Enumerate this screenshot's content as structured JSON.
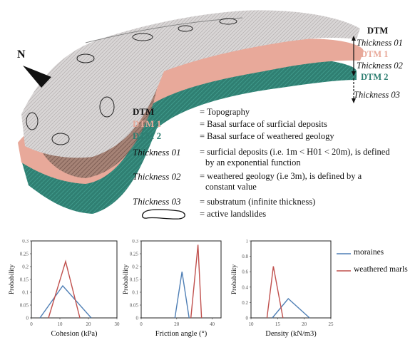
{
  "north_label": "N",
  "layers": {
    "dtm": "DTM",
    "thickness01": "Thickness 01",
    "dtm1": "DTM 1",
    "thickness02": "Thickness 02",
    "dtm2": "DTM 2",
    "thickness03": "Thickness 03"
  },
  "legend": [
    {
      "key": "DTM",
      "desc": "= Topography"
    },
    {
      "key": "DTM 1",
      "desc": "= Basal surface of surficial deposits"
    },
    {
      "key": "DTM 2",
      "desc": "= Basal surface of weathered geology"
    },
    {
      "key": "Thickness 01",
      "desc": "= surficial deposits (i.e.  1m < H01 < 20m), is defined",
      "desc2": "by an exponential function"
    },
    {
      "key": "Thickness 02",
      "desc": "= weathered geology (i.e 3m),  is defined by a",
      "desc2": "constant value"
    },
    {
      "key": "Thickness 03",
      "desc": "= substratum (infinite thickness)"
    },
    {
      "key": "",
      "desc": "= active landslides"
    }
  ],
  "colors": {
    "dtm1": "#e8a99a",
    "dtm2": "#2f7f72",
    "moraines": "#4f7fb5",
    "marls": "#c0504d"
  },
  "chart_data": [
    {
      "type": "line",
      "xlabel": "Cohesion (kPa)",
      "ylabel": "Probability",
      "xlim": [
        0,
        30
      ],
      "ylim": [
        0,
        0.3
      ],
      "xticks": [
        "0",
        "10",
        "20",
        "30"
      ],
      "yticks": [
        "0",
        "0.05",
        "0.1",
        "0.15",
        "0.2",
        "0.25",
        "0.3"
      ],
      "series": [
        {
          "name": "moraines",
          "x": [
            3,
            11,
            21
          ],
          "y": [
            0,
            0.125,
            0
          ]
        },
        {
          "name": "weathered marls",
          "x": [
            6,
            12,
            17
          ],
          "y": [
            0,
            0.22,
            0
          ]
        }
      ]
    },
    {
      "type": "line",
      "xlabel": "Friction angle (°)",
      "ylabel": "Probability",
      "xlim": [
        0,
        45
      ],
      "ylim": [
        0,
        0.3
      ],
      "xticks": [
        "0",
        "20",
        "40"
      ],
      "yticks": [
        "0",
        "0.05",
        "0.1",
        "0.15",
        "0.2",
        "0.25",
        "0.3"
      ],
      "series": [
        {
          "name": "moraines",
          "x": [
            19,
            23,
            27
          ],
          "y": [
            0,
            0.18,
            0
          ]
        },
        {
          "name": "weathered marls",
          "x": [
            28,
            32,
            34
          ],
          "y": [
            0,
            0.285,
            0
          ]
        }
      ]
    },
    {
      "type": "line",
      "xlabel": "Density (kN/m3)",
      "ylabel": "Probability",
      "xlim": [
        10,
        25
      ],
      "ylim": [
        0,
        1
      ],
      "xticks": [
        "10",
        "15",
        "20",
        "25"
      ],
      "yticks": [
        "0",
        "0.2",
        "0.4",
        "0.6",
        "0.8",
        "1"
      ],
      "series": [
        {
          "name": "moraines",
          "x": [
            14,
            17,
            21
          ],
          "y": [
            0,
            0.25,
            0
          ]
        },
        {
          "name": "weathered marls",
          "x": [
            13,
            14.2,
            16
          ],
          "y": [
            0,
            0.67,
            0
          ]
        }
      ]
    }
  ],
  "chart_legend": [
    "moraines",
    "weathered marls"
  ]
}
